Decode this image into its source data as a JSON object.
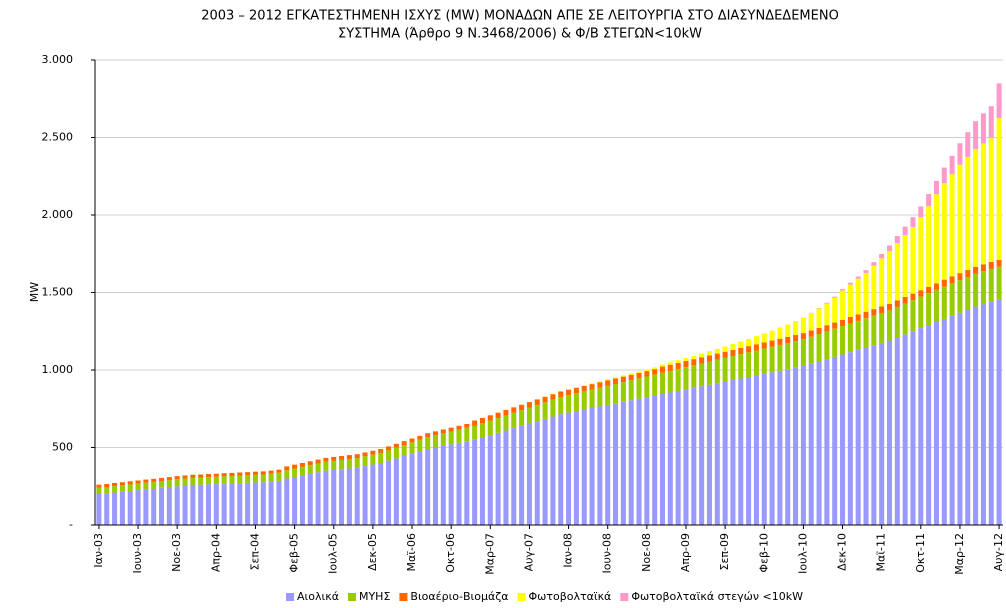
{
  "chart_data": {
    "type": "stacked-bar",
    "title": [
      "2003 – 2012 ΕΓΚΑΤΕΣΤΗΜΕΝΗ ΙΣΧΥΣ (MW) ΜΟΝΑΔΩΝ ΑΠΕ ΣΕ ΛΕΙΤΟΥΡΓΙΑ ΣΤΟ ΔΙΑΣΥΝΔΕΔΕΜΕΝΟ",
      "ΣΥΣΤΗΜΑ (Άρθρο 9 Ν.3468/2006) & Φ/Β ΣΤΕΓΩΝ<10kW"
    ],
    "y_label": "MW",
    "categories": [
      "Ιαν-03",
      null,
      null,
      null,
      null,
      "Ιουν-03",
      null,
      null,
      null,
      null,
      "Νοε-03",
      null,
      null,
      null,
      null,
      "Απρ-04",
      null,
      null,
      null,
      null,
      "Σεπ-04",
      null,
      null,
      null,
      null,
      "Φεβ-05",
      null,
      null,
      null,
      null,
      "Ιουλ-05",
      null,
      null,
      null,
      null,
      "Δεκ-05",
      null,
      null,
      null,
      null,
      "Μαϊ-06",
      null,
      null,
      null,
      null,
      "Οκτ-06",
      null,
      null,
      null,
      null,
      "Μαρ-07",
      null,
      null,
      null,
      null,
      "Αυγ-07",
      null,
      null,
      null,
      null,
      "Ιαν-08",
      null,
      null,
      null,
      null,
      "Ιουν-08",
      null,
      null,
      null,
      null,
      "Νοε-08",
      null,
      null,
      null,
      null,
      "Απρ-09",
      null,
      null,
      null,
      null,
      "Σεπ-09",
      null,
      null,
      null,
      null,
      "Φεβ-10",
      null,
      null,
      null,
      null,
      "Ιουλ-10",
      null,
      null,
      null,
      null,
      "Δεκ-10",
      null,
      null,
      null,
      null,
      "Μαϊ-11",
      null,
      null,
      null,
      null,
      "Οκτ-11",
      null,
      null,
      null,
      null,
      "Μαρ-12",
      null,
      null,
      null,
      null,
      "Αυγ-12"
    ],
    "series": [
      {
        "name": "Αιολικά",
        "color": "#9999ff",
        "values": [
          200,
          205,
          210,
          215,
          220,
          225,
          230,
          235,
          240,
          245,
          250,
          255,
          258,
          260,
          262,
          264,
          266,
          268,
          270,
          272,
          274,
          276,
          280,
          285,
          300,
          310,
          320,
          330,
          340,
          350,
          355,
          360,
          365,
          370,
          380,
          390,
          400,
          415,
          430,
          445,
          460,
          475,
          490,
          500,
          510,
          520,
          530,
          540,
          550,
          565,
          580,
          595,
          610,
          625,
          640,
          655,
          670,
          685,
          700,
          715,
          725,
          735,
          745,
          755,
          765,
          775,
          785,
          795,
          805,
          815,
          825,
          835,
          845,
          855,
          865,
          875,
          885,
          895,
          905,
          915,
          925,
          935,
          945,
          955,
          965,
          975,
          985,
          995,
          1005,
          1015,
          1025,
          1040,
          1055,
          1070,
          1085,
          1100,
          1115,
          1130,
          1145,
          1160,
          1175,
          1190,
          1210,
          1230,
          1250,
          1270,
          1290,
          1310,
          1330,
          1350,
          1370,
          1390,
          1410,
          1425,
          1440,
          1453
        ]
      },
      {
        "name": "ΜΥΗΣ",
        "color": "#99cc00",
        "values": [
          40,
          40,
          41,
          41,
          42,
          42,
          43,
          43,
          44,
          44,
          45,
          45,
          46,
          46,
          47,
          47,
          48,
          48,
          49,
          49,
          50,
          50,
          51,
          52,
          53,
          54,
          55,
          56,
          57,
          58,
          59,
          60,
          61,
          62,
          63,
          64,
          65,
          67,
          69,
          71,
          73,
          75,
          77,
          79,
          81,
          83,
          85,
          87,
          89,
          91,
          93,
          95,
          97,
          99,
          101,
          103,
          105,
          107,
          109,
          111,
          113,
          115,
          117,
          119,
          121,
          123,
          125,
          127,
          129,
          131,
          133,
          135,
          137,
          139,
          141,
          143,
          145,
          147,
          149,
          151,
          153,
          155,
          157,
          159,
          161,
          163,
          165,
          167,
          169,
          171,
          173,
          175,
          177,
          179,
          181,
          183,
          185,
          187,
          189,
          191,
          193,
          195,
          197,
          199,
          201,
          203,
          205,
          207,
          208,
          209,
          210,
          210,
          211,
          212,
          212,
          213
        ]
      },
      {
        "name": "Βιοαέριο-Βιομάζα",
        "color": "#ff6600",
        "values": [
          20,
          20,
          20,
          20,
          20,
          20,
          20,
          20,
          20,
          20,
          20,
          20,
          20,
          20,
          20,
          20,
          20,
          20,
          20,
          20,
          20,
          20,
          20,
          20,
          25,
          25,
          25,
          25,
          25,
          25,
          25,
          25,
          25,
          25,
          25,
          25,
          25,
          25,
          25,
          25,
          25,
          25,
          25,
          25,
          25,
          25,
          25,
          25,
          35,
          35,
          35,
          35,
          35,
          35,
          35,
          35,
          35,
          35,
          35,
          35,
          35,
          35,
          35,
          35,
          35,
          35,
          35,
          35,
          35,
          35,
          35,
          35,
          40,
          40,
          40,
          40,
          40,
          40,
          40,
          40,
          40,
          40,
          40,
          40,
          40,
          40,
          40,
          40,
          40,
          40,
          40,
          40,
          40,
          40,
          40,
          40,
          42,
          42,
          42,
          42,
          42,
          42,
          42,
          42,
          42,
          42,
          42,
          42,
          45,
          45,
          45,
          45,
          45,
          45,
          45,
          45
        ]
      },
      {
        "name": "Φωτοβολταϊκά",
        "color": "#ffff00",
        "values": [
          0,
          0,
          0,
          0,
          0,
          0,
          0,
          0,
          0,
          0,
          0,
          0,
          0,
          0,
          0,
          0,
          0,
          0,
          0,
          0,
          0,
          0,
          0,
          0,
          0,
          0,
          0,
          0,
          0,
          0,
          0,
          0,
          0,
          0,
          0,
          0,
          0,
          0,
          0,
          0,
          0,
          0,
          0,
          0,
          0,
          0,
          0,
          0,
          1,
          1,
          1,
          1,
          2,
          2,
          2,
          2,
          2,
          3,
          3,
          3,
          3,
          4,
          4,
          5,
          5,
          6,
          7,
          8,
          9,
          10,
          11,
          12,
          13,
          15,
          17,
          19,
          21,
          24,
          27,
          30,
          34,
          38,
          42,
          46,
          52,
          58,
          64,
          72,
          80,
          90,
          100,
          112,
          125,
          140,
          160,
          190,
          210,
          230,
          250,
          280,
          310,
          340,
          370,
          400,
          430,
          470,
          520,
          574,
          622,
          660,
          700,
          730,
          760,
          780,
          801,
          914
        ]
      },
      {
        "name": "Φωτοβολταϊκά στεγών <10kW",
        "color": "#ff99cc",
        "values": [
          0,
          0,
          0,
          0,
          0,
          0,
          0,
          0,
          0,
          0,
          0,
          0,
          0,
          0,
          0,
          0,
          0,
          0,
          0,
          0,
          0,
          0,
          0,
          0,
          0,
          0,
          0,
          0,
          0,
          0,
          0,
          0,
          0,
          0,
          0,
          0,
          0,
          0,
          0,
          0,
          0,
          0,
          0,
          0,
          0,
          0,
          0,
          0,
          0,
          0,
          0,
          0,
          0,
          0,
          0,
          0,
          0,
          0,
          0,
          0,
          0,
          0,
          0,
          0,
          0,
          0,
          0,
          0,
          0,
          0,
          0,
          0,
          0,
          0,
          0,
          0,
          0,
          0,
          0,
          0,
          0,
          0,
          0,
          0,
          0,
          0,
          0,
          0,
          0,
          0,
          1,
          2,
          3,
          5,
          7,
          9,
          11,
          14,
          18,
          23,
          29,
          36,
          45,
          54,
          63,
          70,
          78,
          87,
          101,
          118,
          138,
          159,
          179,
          194,
          204,
          224
        ]
      }
    ],
    "ylim": [
      0,
      3000
    ],
    "yticks": [
      {
        "value": 0,
        "label": "-"
      },
      500,
      {
        "value": 1000,
        "label": "1.000"
      },
      {
        "value": 1500,
        "label": "1.500"
      },
      {
        "value": 2000,
        "label": "2.000"
      },
      {
        "value": 2500,
        "label": "2.500"
      },
      {
        "value": 3000,
        "label": "3.000"
      }
    ],
    "grid": true,
    "legend": "bottom"
  }
}
